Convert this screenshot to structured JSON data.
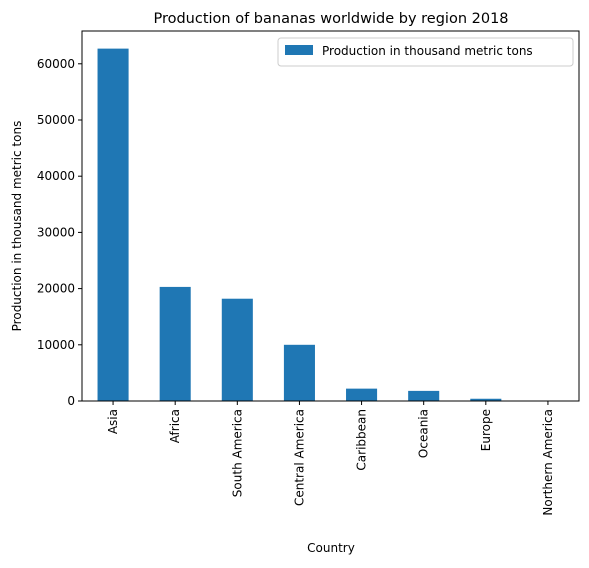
{
  "chart_data": {
    "type": "bar",
    "title": "Production of bananas worldwide by region 2018",
    "xlabel": "Country",
    "ylabel": "Production in thousand metric tons",
    "categories": [
      "Asia",
      "Africa",
      "South America",
      "Central America",
      "Caribbean",
      "Oceania",
      "Europe",
      "Northern America"
    ],
    "series": [
      {
        "name": "Production in thousand metric tons",
        "values": [
          62700,
          20300,
          18200,
          10000,
          2200,
          1800,
          400,
          10
        ]
      }
    ],
    "ylim": [
      0,
      65835
    ],
    "yticks": [
      0,
      10000,
      20000,
      30000,
      40000,
      50000,
      60000
    ],
    "ytick_labels": [
      "0",
      "10000",
      "20000",
      "30000",
      "40000",
      "50000",
      "60000"
    ],
    "legend_position": "top-right",
    "grid": false,
    "bar_color": "#1f77b4"
  }
}
